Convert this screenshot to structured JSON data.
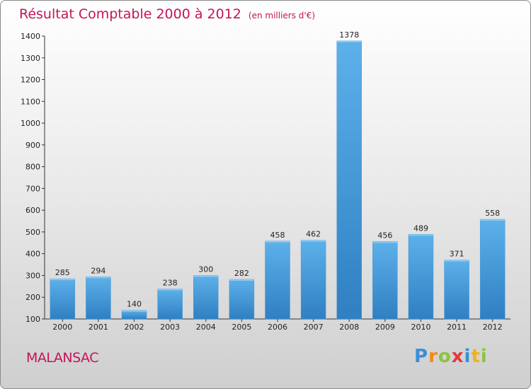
{
  "header": {
    "title": "Résultat Comptable 2000 à 2012",
    "subtitle": "(en milliers d'€)"
  },
  "commune": "MALANSAC",
  "logo": {
    "p": "P",
    "r": "r",
    "o": "o",
    "x": "x",
    "i": "i",
    "t": "t",
    "i2": "i"
  },
  "colors": {
    "accent": "#c4145a",
    "bar_light": "#5db1ea",
    "bar_dark": "#2f7fc2"
  },
  "chart_data": {
    "type": "bar",
    "title": "Résultat Comptable 2000 à 2012",
    "subtitle": "(en milliers d'€)",
    "xlabel": "",
    "ylabel": "",
    "categories": [
      "2000",
      "2001",
      "2002",
      "2003",
      "2004",
      "2005",
      "2006",
      "2007",
      "2008",
      "2009",
      "2010",
      "2011",
      "2012"
    ],
    "values": [
      285,
      294,
      140,
      238,
      300,
      282,
      458,
      462,
      1378,
      456,
      489,
      371,
      558
    ],
    "ylim": [
      100,
      1400
    ],
    "yticks": [
      100,
      200,
      300,
      400,
      500,
      600,
      700,
      800,
      900,
      1000,
      1100,
      1200,
      1300,
      1400
    ],
    "grid": false,
    "data_labels": true
  }
}
